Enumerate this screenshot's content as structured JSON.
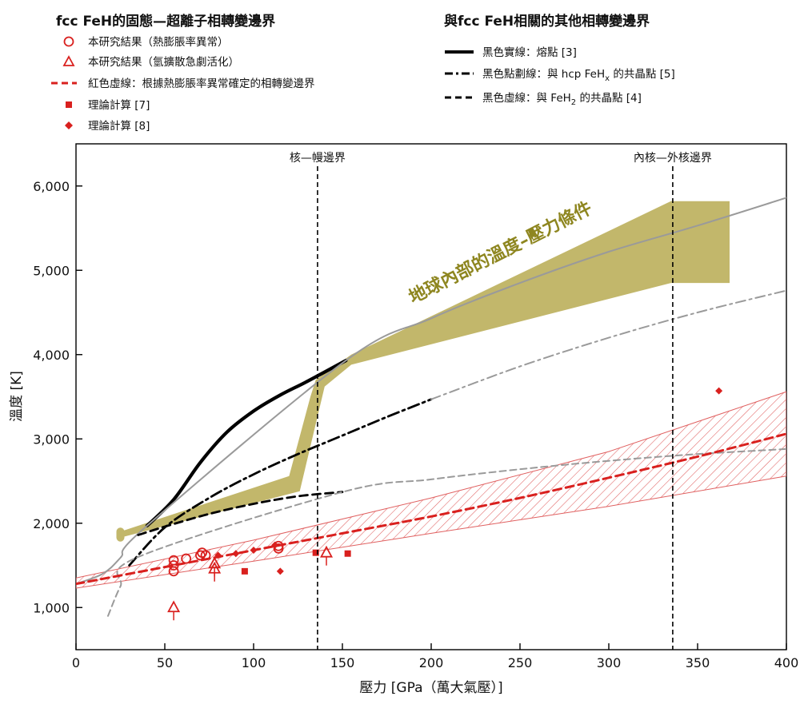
{
  "chart_data": {
    "type": "line",
    "legend_left": {
      "title": "fcc FeH的固態—超離子相轉變邊界",
      "entries": [
        {
          "label": "本研究結果（熱膨脹率異常）",
          "marker": "circle",
          "color": "#d9201e"
        },
        {
          "label": "本研究結果（氫擴散急劇活化）",
          "marker": "triangle",
          "color": "#d9201e"
        },
        {
          "label": "紅色虛線：根據熱膨脹率異常確定的相轉變邊界",
          "marker": "red-dashed-line",
          "color": "#d9201e"
        },
        {
          "label": "理論計算 [7]",
          "marker": "square",
          "color": "#d9201e"
        },
        {
          "label": "理論計算 [8]",
          "marker": "diamond",
          "color": "#d9201e"
        }
      ]
    },
    "legend_right": {
      "title": "與fcc FeH相關的其他相轉變邊界",
      "entries": [
        {
          "label": "黑色實線：熔點 [3]",
          "marker": "solid"
        },
        {
          "label": "黑色點劃線：與 hcp FeH",
          "sub": "x",
          "label_after": " 的共晶點 [5]",
          "marker": "dashdot"
        },
        {
          "label": "黑色虛線：與 FeH",
          "sub": "2",
          "label_after": " 的共晶點 [4]",
          "marker": "dashed"
        }
      ]
    },
    "xlabel": "壓力 [GPa（萬大氣壓）]",
    "ylabel": "溫度 [K]",
    "xlim": [
      0,
      400
    ],
    "ylim": [
      500,
      6500
    ],
    "xticks": [
      0,
      50,
      100,
      150,
      200,
      250,
      300,
      350,
      400
    ],
    "yticks": [
      1000,
      2000,
      3000,
      4000,
      5000,
      6000
    ],
    "ytick_labels": [
      "1,000",
      "2,000",
      "3,000",
      "4,000",
      "5,000",
      "6,000"
    ],
    "annotations": {
      "cmb_label": "核—幔邊界",
      "cmb_pressure": 136,
      "icb_label": "內核—外核邊界",
      "icb_pressure": 336,
      "geotherm_label": "地球內部的溫度–壓力條件"
    },
    "colors": {
      "red": "#d9201e",
      "geotherm": "#c2b76b",
      "gray": "#9a9a9a",
      "black": "#000000"
    },
    "geotherm_band": {
      "upper": [
        [
          25,
          1900
        ],
        [
          120,
          2560
        ],
        [
          132,
          3500
        ],
        [
          135,
          3700
        ],
        [
          155,
          4000
        ],
        [
          335,
          5820
        ],
        [
          368,
          5820
        ]
      ],
      "lower": [
        [
          368,
          4850
        ],
        [
          335,
          4850
        ],
        [
          155,
          3880
        ],
        [
          140,
          3620
        ],
        [
          126,
          2380
        ],
        [
          25,
          1830
        ]
      ]
    },
    "series": [
      {
        "name": "熔點 [3]",
        "style": "solid-black",
        "points": [
          [
            40,
            1970
          ],
          [
            55,
            2280
          ],
          [
            70,
            2720
          ],
          [
            85,
            3080
          ],
          [
            100,
            3330
          ],
          [
            115,
            3520
          ],
          [
            130,
            3680
          ],
          [
            152,
            3930
          ]
        ]
      },
      {
        "style": "solid-gray",
        "points": [
          [
            0,
            1280
          ],
          [
            15,
            1400
          ],
          [
            25,
            1590
          ],
          [
            40,
            1970
          ],
          [
            152,
            3930
          ],
          [
            200,
            4430
          ],
          [
            250,
            4850
          ],
          [
            300,
            5220
          ],
          [
            350,
            5530
          ],
          [
            400,
            5860
          ]
        ]
      },
      {
        "name": "與 hcp FeHx 的共晶點 [5]",
        "style": "dashdot-black",
        "points": [
          [
            30,
            1500
          ],
          [
            50,
            1950
          ],
          [
            75,
            2300
          ],
          [
            100,
            2580
          ],
          [
            125,
            2820
          ],
          [
            150,
            3040
          ],
          [
            175,
            3260
          ],
          [
            200,
            3470
          ]
        ]
      },
      {
        "style": "dashdot-gray",
        "points": [
          [
            200,
            3470
          ],
          [
            250,
            3860
          ],
          [
            300,
            4200
          ],
          [
            350,
            4500
          ],
          [
            400,
            4760
          ]
        ]
      },
      {
        "name": "與 FeH2 的共晶點 [4]",
        "style": "dashed-black",
        "points": [
          [
            35,
            1860
          ],
          [
            50,
            1960
          ],
          [
            75,
            2110
          ],
          [
            100,
            2230
          ],
          [
            125,
            2320
          ],
          [
            150,
            2370
          ]
        ]
      },
      {
        "style": "dashed-gray",
        "points": [
          [
            18,
            900
          ],
          [
            25,
            1250
          ],
          [
            35,
            1600
          ],
          [
            150,
            2370
          ],
          [
            200,
            2520
          ],
          [
            250,
            2640
          ],
          [
            300,
            2740
          ],
          [
            350,
            2820
          ],
          [
            400,
            2880
          ]
        ]
      },
      {
        "name": "紅色虛線：相轉變邊界",
        "style": "dashed-red",
        "points": [
          [
            0,
            1280
          ],
          [
            50,
            1480
          ],
          [
            100,
            1680
          ],
          [
            150,
            1880
          ],
          [
            200,
            2080
          ],
          [
            250,
            2300
          ],
          [
            300,
            2540
          ],
          [
            350,
            2790
          ],
          [
            400,
            3060
          ]
        ]
      }
    ],
    "uncertainty_band": {
      "upper": [
        [
          0,
          1350
        ],
        [
          100,
          1800
        ],
        [
          200,
          2300
        ],
        [
          300,
          2850
        ],
        [
          400,
          3560
        ]
      ],
      "lower": [
        [
          0,
          1230
        ],
        [
          100,
          1550
        ],
        [
          200,
          1880
        ],
        [
          300,
          2200
        ],
        [
          400,
          2560
        ]
      ]
    },
    "points_circle": [
      [
        55,
        1430
      ],
      [
        55,
        1500
      ],
      [
        55,
        1560
      ],
      [
        62,
        1580
      ],
      [
        70,
        1620
      ],
      [
        71,
        1650
      ],
      [
        73,
        1620
      ],
      [
        114,
        1730
      ],
      [
        114,
        1700
      ]
    ],
    "points_triangle": [
      [
        55,
        1000
      ],
      [
        78,
        1460
      ],
      [
        78,
        1520
      ],
      [
        141,
        1650
      ]
    ],
    "points_square": [
      [
        95,
        1430
      ],
      [
        135,
        1650
      ],
      [
        153,
        1640
      ]
    ],
    "points_diamond": [
      [
        115,
        1430
      ],
      [
        362,
        3570
      ],
      [
        80,
        1620
      ],
      [
        90,
        1640
      ],
      [
        100,
        1680
      ],
      [
        112,
        1740
      ]
    ]
  }
}
